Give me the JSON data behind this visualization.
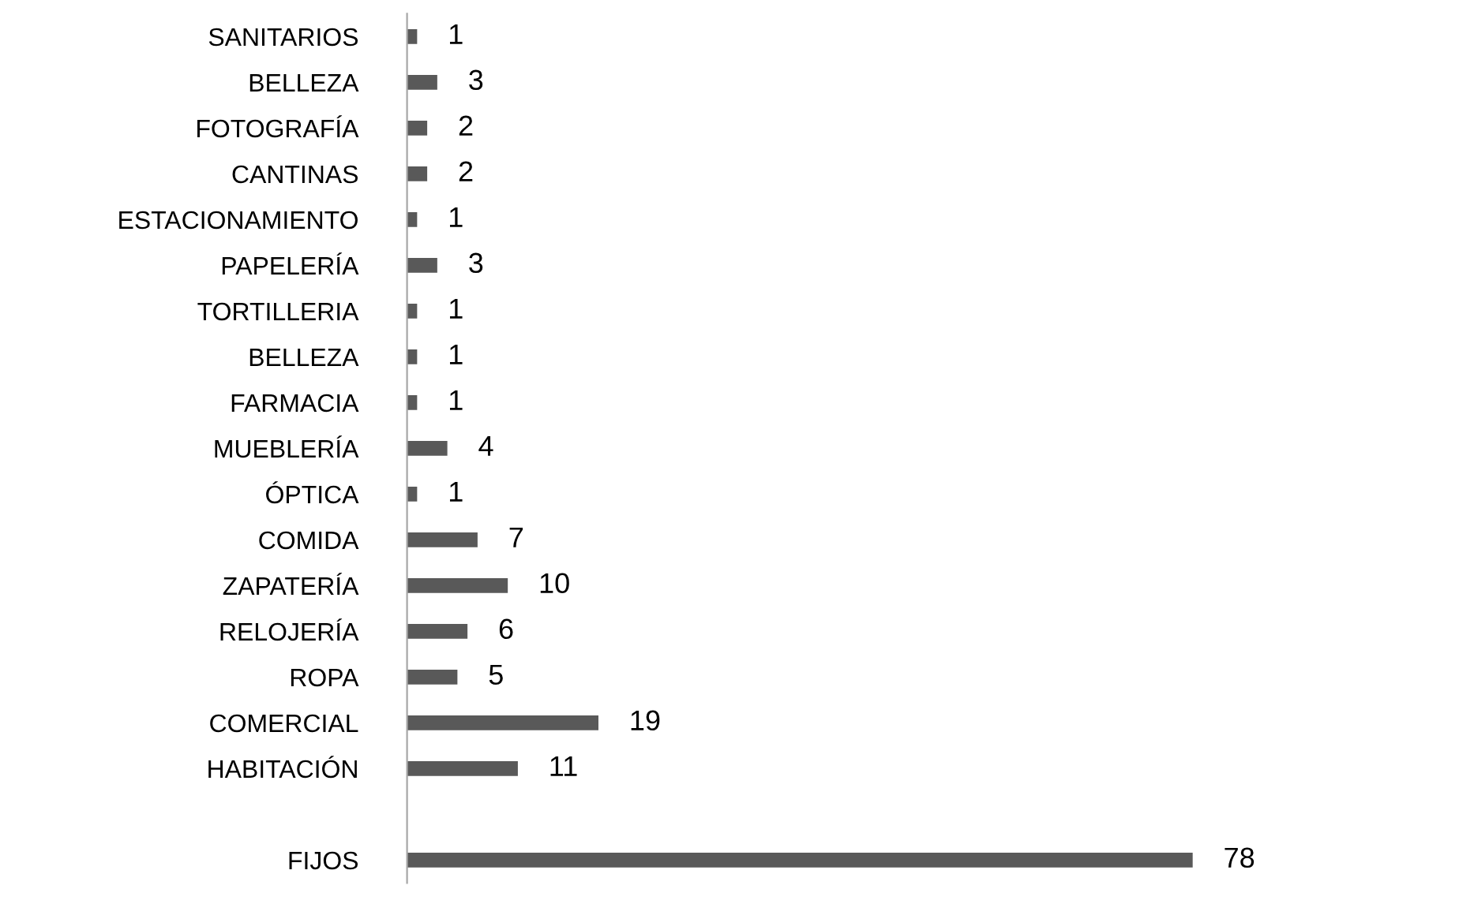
{
  "chart_data": {
    "type": "bar",
    "orientation": "horizontal",
    "data_labels": true,
    "grid": false,
    "legend": false,
    "color": "#595959",
    "categories": [
      "SANITARIOS",
      "BELLEZA",
      "FOTOGRAFÍA",
      "CANTINAS",
      "ESTACIONAMIENTO",
      "PAPELERÍA",
      "TORTILLERIA",
      "BELLEZA",
      "FARMACIA",
      "MUEBLERÍA",
      "ÓPTICA",
      "COMIDA",
      "ZAPATERÍA",
      "RELOJERÍA",
      "ROPA",
      "COMERCIAL",
      "HABITACIÓN",
      null,
      "FIJOS"
    ],
    "values": [
      1,
      3,
      2,
      2,
      1,
      3,
      1,
      1,
      1,
      4,
      1,
      7,
      10,
      6,
      5,
      19,
      11,
      null,
      78
    ]
  }
}
